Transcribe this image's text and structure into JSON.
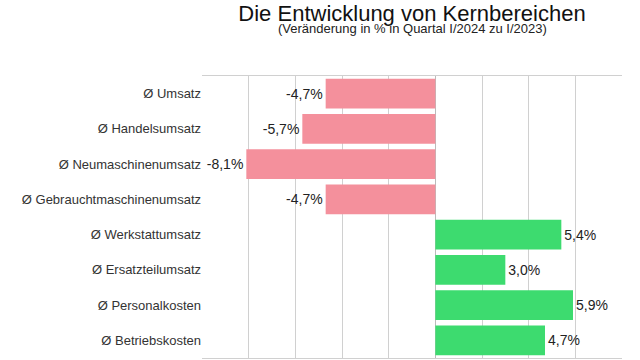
{
  "chart_data": {
    "type": "bar",
    "orientation": "horizontal",
    "title": "Die Entwicklung von Kernbereichen",
    "subtitle": "(Veränderung in % in Quartal I/2024 zu I/2023)",
    "categories": [
      "Ø Umsatz",
      "Ø Handelsumsatz",
      "Ø Neumaschinenumsatz",
      "Ø Gebrauchtmaschinenumsatz",
      "Ø Werkstattumsatz",
      "Ø Ersatzteilumsatz",
      "Ø Personalkosten",
      "Ø Betriebskosten"
    ],
    "values": [
      -4.7,
      -5.7,
      -8.1,
      -4.7,
      5.4,
      3.0,
      5.9,
      4.7
    ],
    "value_labels": [
      "-4,7%",
      "-5,7%",
      "-8,1%",
      "-4,7%",
      "5,4%",
      "3,0%",
      "5,9%",
      "4,7%"
    ],
    "colors": [
      "#f4909c",
      "#f4909c",
      "#f4909c",
      "#f4909c",
      "#3ddb6f",
      "#3ddb6f",
      "#3ddb6f",
      "#3ddb6f"
    ],
    "xlim": [
      -10,
      8
    ],
    "xticks": [
      -10,
      -8,
      -6,
      -4,
      -2,
      0,
      2,
      4,
      6,
      8
    ],
    "grid": true,
    "data_labels": true,
    "tick_labels": "y"
  }
}
